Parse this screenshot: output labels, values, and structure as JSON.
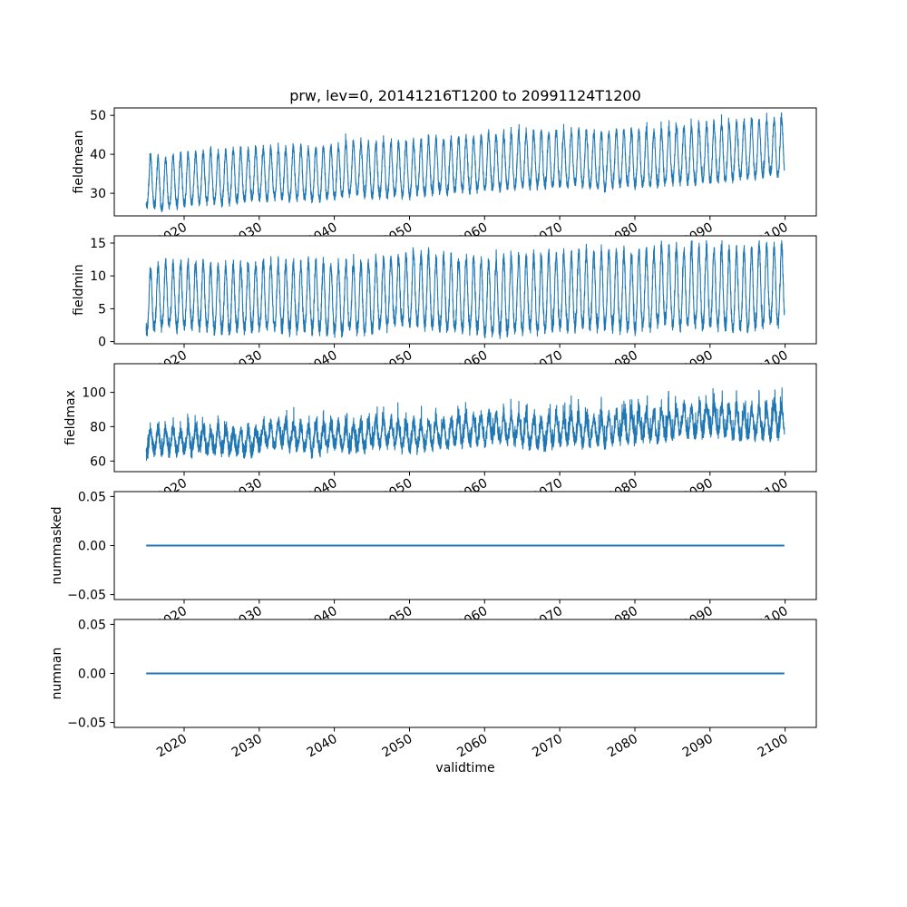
{
  "chart_data": {
    "type": "line",
    "title": "prw, lev=0, 20141216T1200 to 20991124T1200",
    "xlabel": "validtime",
    "line_color": "#1f77b4",
    "background": "#ffffff",
    "axis_color": "#000000",
    "legend": "none",
    "grid": false,
    "x_axis": {
      "lim": [
        2010.71,
        2104.15
      ],
      "ticks": [
        2020,
        2030,
        2040,
        2050,
        2060,
        2070,
        2080,
        2090,
        2100
      ],
      "tick_labels": [
        "2020",
        "2030",
        "2040",
        "2050",
        "2060",
        "2070",
        "2080",
        "2090",
        "2100"
      ],
      "tick_rotation_deg": 30,
      "data_start_year": 2014.96,
      "data_end_year": 2099.9
    },
    "subplots": [
      {
        "ylabel": "fieldmean",
        "ylim": [
          24.2,
          51.9
        ],
        "yticks": [
          {
            "value": 30,
            "label": "30"
          },
          {
            "value": 40,
            "label": "40"
          },
          {
            "value": 50,
            "label": "50"
          }
        ],
        "series": {
          "kind": "seasonal_noisy",
          "points": 6400,
          "seed": 11,
          "mean_start": 32.4,
          "mean_end": 40.6,
          "amp_start": 6.3,
          "amp_end": 7.2,
          "harmonic": 0.12,
          "noise": 1.15,
          "walk": 0.8,
          "spike_pow": 14,
          "spike_amp": 2.5,
          "clamp": [
            25.3,
            50.6
          ]
        }
      },
      {
        "ylabel": "fieldmin",
        "ylim": [
          -0.33,
          16.1
        ],
        "yticks": [
          {
            "value": 0,
            "label": "0"
          },
          {
            "value": 5,
            "label": "5"
          },
          {
            "value": 10,
            "label": "10"
          },
          {
            "value": 15,
            "label": "15"
          }
        ],
        "series": {
          "kind": "seasonal_noisy",
          "points": 6400,
          "seed": 22,
          "mean_start": 6.1,
          "mean_end": 7.6,
          "amp_start": 4.7,
          "amp_end": 6.0,
          "harmonic": 0.12,
          "noise": 1.05,
          "walk": 0.6,
          "spike_pow": 14,
          "spike_amp": 1.5,
          "clamp": [
            0.45,
            15.35
          ]
        }
      },
      {
        "ylabel": "fieldmax",
        "ylim": [
          53.8,
          116.7
        ],
        "yticks": [
          {
            "value": 60,
            "label": "60"
          },
          {
            "value": 80,
            "label": "80"
          },
          {
            "value": 100,
            "label": "100"
          }
        ],
        "series": {
          "kind": "seasonal_noisy",
          "points": 6400,
          "seed": 33,
          "mean_start": 69.5,
          "mean_end": 83.5,
          "amp_start": 6.2,
          "amp_end": 8.0,
          "harmonic": 0.12,
          "noise": 4.0,
          "walk": 2.5,
          "spike_pow": 12,
          "spike_amp": 14,
          "clamp": [
            56.5,
            113.8
          ]
        }
      },
      {
        "ylabel": "nummasked",
        "ylim": [
          -0.055,
          0.055
        ],
        "yticks": [
          {
            "value": -0.05,
            "label": "−0.05"
          },
          {
            "value": 0,
            "label": "0.00"
          },
          {
            "value": 0.05,
            "label": "0.05"
          }
        ],
        "series": {
          "kind": "constant",
          "value": 0
        }
      },
      {
        "ylabel": "numnan",
        "ylim": [
          -0.055,
          0.055
        ],
        "yticks": [
          {
            "value": -0.05,
            "label": "−0.05"
          },
          {
            "value": 0,
            "label": "0.00"
          },
          {
            "value": 0.05,
            "label": "0.05"
          }
        ],
        "series": {
          "kind": "constant",
          "value": 0
        }
      }
    ]
  }
}
